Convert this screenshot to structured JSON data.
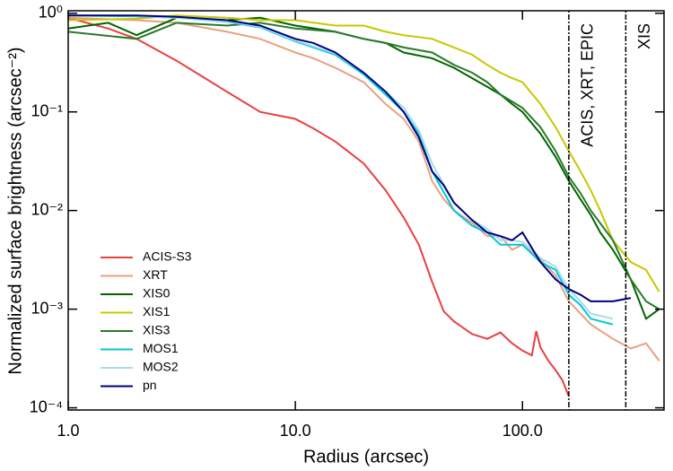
{
  "chart_data": {
    "type": "line",
    "x_label": "Radius (arcsec)",
    "y_label": "Normalized surface brightness (arcsec⁻²)",
    "xscale": "log",
    "yscale": "log",
    "xlim": [
      1,
      420
    ],
    "ylim": [
      9.5e-05,
      1.06
    ],
    "xticks": [
      {
        "value": 1,
        "label": "1.0"
      },
      {
        "value": 10,
        "label": "10.0"
      },
      {
        "value": 100,
        "label": "100.0"
      }
    ],
    "yticks": [
      {
        "value": 1,
        "label": "10⁰"
      },
      {
        "value": 0.1,
        "label": "10⁻¹"
      },
      {
        "value": 0.01,
        "label": "10⁻²"
      },
      {
        "value": 0.001,
        "label": "10⁻³"
      },
      {
        "value": 0.0001,
        "label": "10⁻⁴"
      }
    ],
    "legend": "lower left",
    "annotations": [
      {
        "text": "ACIS, XRT, EPIC",
        "x": 160
      },
      {
        "text": "XIS",
        "x": 285
      }
    ],
    "series": [
      {
        "name": "ACIS-S3",
        "color": "#e84040",
        "x": [
          1,
          1.5,
          2,
          3,
          4,
          5,
          7,
          10,
          12,
          15,
          20,
          25,
          30,
          35,
          40,
          45,
          50,
          60,
          70,
          80,
          90,
          100,
          110,
          115,
          120,
          130,
          140,
          150,
          160
        ],
        "values": [
          0.9,
          0.7,
          0.55,
          0.33,
          0.22,
          0.16,
          0.1,
          0.085,
          0.068,
          0.05,
          0.03,
          0.016,
          0.0085,
          0.0045,
          0.0019,
          0.00095,
          0.00075,
          0.00056,
          0.0005,
          0.00058,
          0.00045,
          0.00038,
          0.00034,
          0.0006,
          0.00041,
          0.0003,
          0.00024,
          0.00019,
          0.00013
        ]
      },
      {
        "name": "XRT",
        "color": "#e8a080",
        "x": [
          1,
          2,
          3,
          5,
          7,
          10,
          12,
          15,
          20,
          25,
          30,
          35,
          40,
          45,
          50,
          60,
          70,
          80,
          90,
          100,
          120,
          140,
          160,
          180,
          200,
          250,
          300,
          350,
          400
        ],
        "values": [
          0.9,
          0.85,
          0.8,
          0.65,
          0.55,
          0.4,
          0.35,
          0.28,
          0.2,
          0.12,
          0.085,
          0.05,
          0.02,
          0.013,
          0.01,
          0.0075,
          0.0055,
          0.0055,
          0.004,
          0.0045,
          0.0032,
          0.0022,
          0.0012,
          0.0009,
          0.0007,
          0.0005,
          0.0004,
          0.00045,
          0.0003
        ]
      },
      {
        "name": "XIS0",
        "color": "#006400",
        "x": [
          1,
          1.5,
          2,
          3,
          5,
          7,
          10,
          15,
          20,
          25,
          30,
          40,
          50,
          60,
          70,
          80,
          90,
          100,
          120,
          140,
          160,
          180,
          200,
          220,
          250,
          300,
          350,
          400
        ],
        "values": [
          0.7,
          0.8,
          0.6,
          0.9,
          0.85,
          0.9,
          0.75,
          0.65,
          0.55,
          0.5,
          0.4,
          0.35,
          0.28,
          0.22,
          0.18,
          0.15,
          0.12,
          0.1,
          0.06,
          0.035,
          0.02,
          0.013,
          0.009,
          0.006,
          0.004,
          0.002,
          0.0008,
          0.001
        ]
      },
      {
        "name": "XIS1",
        "color": "#c8c800",
        "x": [
          1,
          2,
          3,
          5,
          7,
          10,
          15,
          20,
          25,
          30,
          40,
          50,
          60,
          70,
          80,
          90,
          100,
          120,
          140,
          160,
          180,
          200,
          220,
          250,
          300,
          350,
          400
        ],
        "values": [
          0.85,
          0.88,
          0.95,
          0.9,
          0.85,
          0.85,
          0.75,
          0.75,
          0.65,
          0.6,
          0.55,
          0.45,
          0.38,
          0.3,
          0.25,
          0.22,
          0.2,
          0.12,
          0.07,
          0.04,
          0.025,
          0.016,
          0.01,
          0.005,
          0.003,
          0.0025,
          0.0015
        ]
      },
      {
        "name": "XIS3",
        "color": "#2a7a2a",
        "x": [
          1,
          2,
          3,
          5,
          7,
          10,
          15,
          20,
          25,
          30,
          40,
          50,
          60,
          70,
          80,
          100,
          120,
          140,
          160,
          180,
          200,
          250,
          300,
          350,
          400
        ],
        "values": [
          0.65,
          0.55,
          0.8,
          0.75,
          0.8,
          0.7,
          0.65,
          0.55,
          0.5,
          0.45,
          0.4,
          0.3,
          0.25,
          0.2,
          0.15,
          0.11,
          0.07,
          0.04,
          0.022,
          0.015,
          0.01,
          0.005,
          0.002,
          0.0012,
          0.001
        ]
      },
      {
        "name": "MOS1",
        "color": "#00c8d8",
        "x": [
          1,
          2,
          3,
          5,
          7,
          10,
          15,
          20,
          25,
          30,
          35,
          40,
          50,
          60,
          70,
          80,
          90,
          100,
          120,
          140,
          160,
          180,
          200,
          250
        ],
        "values": [
          0.95,
          0.93,
          0.9,
          0.82,
          0.72,
          0.52,
          0.38,
          0.24,
          0.15,
          0.1,
          0.06,
          0.025,
          0.01,
          0.007,
          0.006,
          0.0045,
          0.0045,
          0.0045,
          0.003,
          0.0025,
          0.0014,
          0.0011,
          0.0008,
          0.0007
        ]
      },
      {
        "name": "MOS2",
        "color": "#a8dce6",
        "x": [
          1,
          2,
          3,
          5,
          7,
          10,
          15,
          20,
          25,
          30,
          35,
          40,
          50,
          60,
          70,
          80,
          90,
          100,
          120,
          140,
          160,
          180,
          200,
          250
        ],
        "values": [
          0.95,
          0.94,
          0.9,
          0.83,
          0.73,
          0.53,
          0.39,
          0.25,
          0.16,
          0.11,
          0.065,
          0.03,
          0.012,
          0.008,
          0.0065,
          0.005,
          0.005,
          0.0048,
          0.0033,
          0.0027,
          0.0016,
          0.0012,
          0.0009,
          0.0008
        ]
      },
      {
        "name": "pn",
        "color": "#000080",
        "x": [
          1,
          2,
          3,
          5,
          7,
          10,
          12,
          15,
          20,
          25,
          30,
          35,
          40,
          45,
          50,
          60,
          70,
          80,
          90,
          100,
          120,
          140,
          160,
          180,
          200,
          250,
          300
        ],
        "values": [
          0.95,
          0.95,
          0.92,
          0.85,
          0.75,
          0.55,
          0.5,
          0.4,
          0.25,
          0.16,
          0.1,
          0.055,
          0.025,
          0.018,
          0.012,
          0.008,
          0.006,
          0.0055,
          0.005,
          0.006,
          0.003,
          0.002,
          0.0016,
          0.0014,
          0.0012,
          0.0012,
          0.0013
        ]
      }
    ]
  }
}
